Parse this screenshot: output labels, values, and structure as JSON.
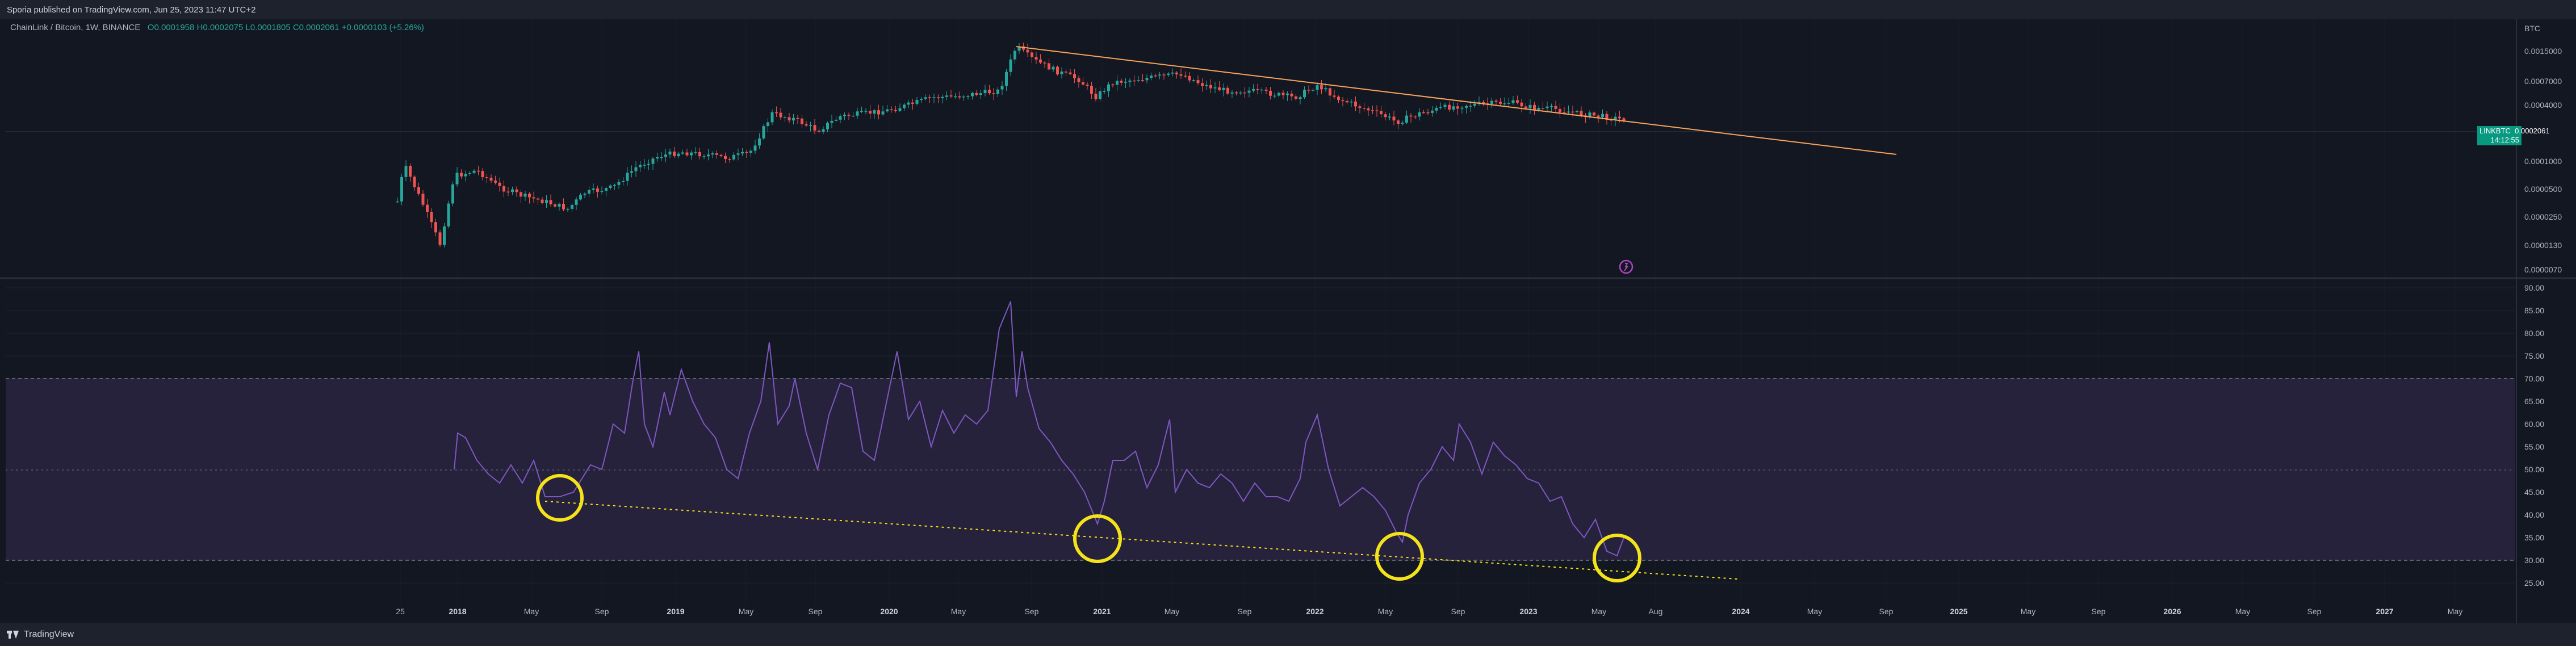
{
  "header": {
    "published_text": "Sporia published on TradingView.com, Jun 25, 2023 11:47 UTC+2"
  },
  "symbol": {
    "name": "ChainLink / Bitcoin, 1W, BINANCE",
    "ohlc": "O0.0001958 H0.0002075 L0.0001805 C0.0002061 +0.0000103 (+5.26%)"
  },
  "price_axis": {
    "unit": "BTC",
    "labels": [
      "0.0015000",
      "0.0007000",
      "0.0004000",
      "0.0001000",
      "0.0000500",
      "0.0000250",
      "0.0000130",
      "0.0000070"
    ]
  },
  "price_marker": {
    "pair": "LINKBTC",
    "price": "0.0002061",
    "countdown": "14:12:55"
  },
  "rsi_axis": {
    "labels": [
      "90.00",
      "85.00",
      "80.00",
      "75.00",
      "70.00",
      "65.00",
      "60.00",
      "55.00",
      "50.00",
      "45.00",
      "40.00",
      "35.00",
      "30.00",
      "25.00"
    ]
  },
  "time_axis": {
    "labels": [
      "25",
      "2018",
      "May",
      "Sep",
      "2019",
      "May",
      "Sep",
      "2020",
      "May",
      "Sep",
      "2021",
      "May",
      "Sep",
      "2022",
      "May",
      "Sep",
      "2023",
      "May",
      "Aug",
      "2024",
      "May",
      "Sep",
      "2025",
      "May",
      "Sep",
      "2026",
      "May",
      "Sep",
      "2027",
      "May"
    ]
  },
  "chart_data": {
    "type": "candlestick_with_rsi",
    "price_scale": "log",
    "trendline": "descending resistance from 2020 high",
    "rsi": {
      "overbought": 70,
      "oversold": 30,
      "middle": 50,
      "ylim": [
        25,
        90
      ],
      "highlight_circles": 4,
      "support_trendline": "dotted descending line connecting RSI lows"
    },
    "colors": {
      "up": "#26a69a",
      "down": "#ef5350",
      "rsi": "#7e57c2",
      "trendline": "#f7a35c",
      "circle": "#f5e31a"
    }
  },
  "footer": {
    "brand": "TradingView"
  }
}
